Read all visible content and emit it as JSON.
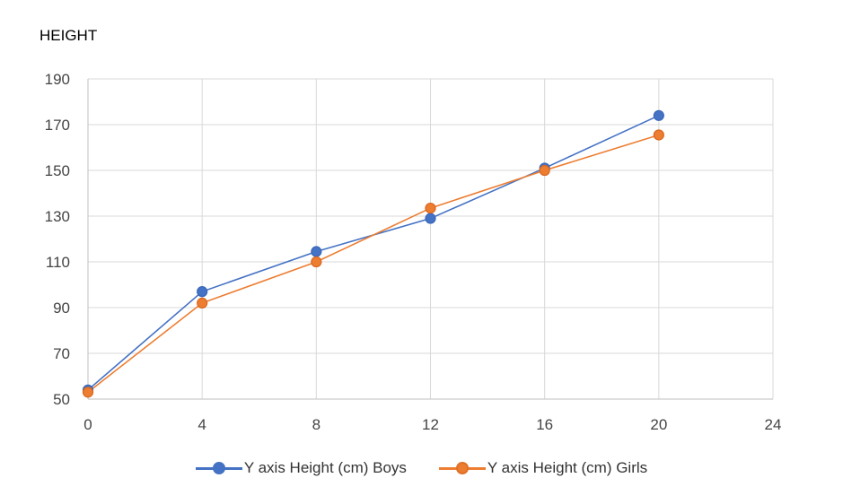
{
  "chart_data": {
    "type": "line",
    "title": "HEIGHT",
    "xlabel": "",
    "ylabel": "",
    "xlim": [
      0,
      24
    ],
    "ylim": [
      50,
      190
    ],
    "xticks": [
      "0",
      "4",
      "8",
      "12",
      "16",
      "20",
      "24"
    ],
    "yticks": [
      "50",
      "70",
      "90",
      "110",
      "130",
      "150",
      "170",
      "190"
    ],
    "grid": true,
    "legend_position": "bottom",
    "x": [
      0,
      4,
      8,
      12,
      16,
      20
    ],
    "series": [
      {
        "name": "Y axis Height (cm) Boys",
        "color": "#4472C4",
        "values": [
          54,
          97,
          114.5,
          129,
          151,
          174
        ]
      },
      {
        "name": "Y axis Height (cm) Girls",
        "color": "#ED7D31",
        "values": [
          53,
          92,
          110,
          133.5,
          150,
          165.5
        ]
      }
    ]
  }
}
